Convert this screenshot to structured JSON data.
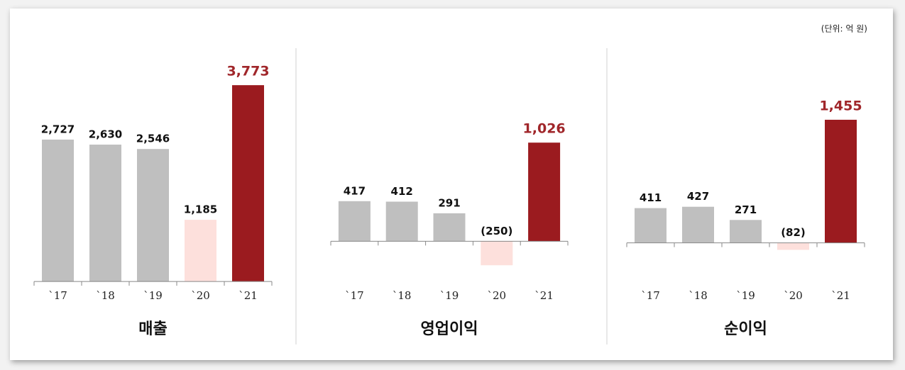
{
  "note": "(단위: 억 원)",
  "chart_data": [
    {
      "type": "bar",
      "title": "매출",
      "categories": [
        "`17",
        "`18",
        "`19",
        "`20",
        "`21"
      ],
      "values": [
        2727,
        2630,
        2546,
        1185,
        3773
      ],
      "value_labels": [
        "2,727",
        "2,630",
        "2,546",
        "1,185",
        "3,773"
      ],
      "colors": [
        "#bfbfbf",
        "#bfbfbf",
        "#bfbfbf",
        "#fde0dc",
        "#9b1b1f"
      ],
      "label_colors": [
        "#111111",
        "#111111",
        "#111111",
        "#111111",
        "#a0262a"
      ],
      "ylim": [
        -40,
        4320
      ]
    },
    {
      "type": "bar",
      "title": "영업이익",
      "categories": [
        "`17",
        "`18",
        "`19",
        "`20",
        "`21"
      ],
      "values": [
        417,
        412,
        291,
        -250,
        1026
      ],
      "value_labels": [
        "417",
        "412",
        "291",
        "(250)",
        "1,026"
      ],
      "colors": [
        "#bfbfbf",
        "#bfbfbf",
        "#bfbfbf",
        "#fde0dc",
        "#9b1b1f"
      ],
      "label_colors": [
        "#111111",
        "#111111",
        "#111111",
        "#111111",
        "#a0262a"
      ],
      "ylim": [
        -440,
        1920
      ]
    },
    {
      "type": "bar",
      "title": "순이익",
      "categories": [
        "`17",
        "`18",
        "`19",
        "`20",
        "`21"
      ],
      "values": [
        411,
        427,
        271,
        -82,
        1455
      ],
      "value_labels": [
        "411",
        "427",
        "271",
        "(82)",
        "1,455"
      ],
      "colors": [
        "#bfbfbf",
        "#bfbfbf",
        "#bfbfbf",
        "#fde0dc",
        "#9b1b1f"
      ],
      "label_colors": [
        "#111111",
        "#111111",
        "#111111",
        "#111111",
        "#a0262a"
      ],
      "ylim": [
        -480,
        2200
      ]
    }
  ]
}
